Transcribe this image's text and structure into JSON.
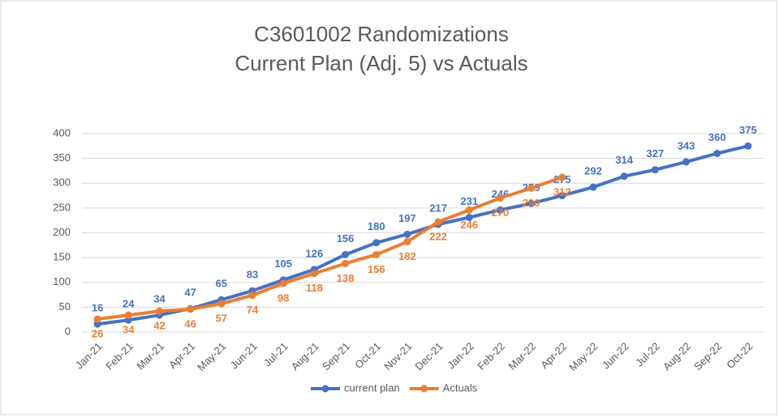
{
  "chart_data": {
    "type": "line",
    "title": "C3601002 Randomizations",
    "subtitle": "Current Plan (Adj. 5) vs Actuals",
    "categories": [
      "Jan-21",
      "Feb-21",
      "Mar-21",
      "Apr-21",
      "May-21",
      "Jun-21",
      "Jul-21",
      "Aug-21",
      "Sep-21",
      "Oct-21",
      "Nov-21",
      "Dec-21",
      "Jan-22",
      "Feb-22",
      "Mar-22",
      "Apr-22",
      "May-22",
      "Jun-22",
      "Jul-22",
      "Aug-22",
      "Sep-22",
      "Oct-22"
    ],
    "series": [
      {
        "name": "current plan",
        "color": "#4472c4",
        "label_position": "above",
        "values": [
          16,
          24,
          34,
          47,
          65,
          83,
          105,
          126,
          156,
          180,
          197,
          217,
          231,
          246,
          259,
          275,
          292,
          314,
          327,
          343,
          360,
          375
        ]
      },
      {
        "name": "Actuals",
        "color": "#ed7d31",
        "label_position": "below",
        "values": [
          26,
          34,
          42,
          46,
          57,
          74,
          98,
          118,
          138,
          156,
          182,
          222,
          246,
          270,
          290,
          312,
          null,
          null,
          null,
          null,
          null,
          null
        ]
      }
    ],
    "ylim": [
      0,
      400
    ],
    "yticks": [
      0,
      50,
      100,
      150,
      200,
      250,
      300,
      350,
      400
    ],
    "grid": true,
    "legend": "bottom"
  }
}
